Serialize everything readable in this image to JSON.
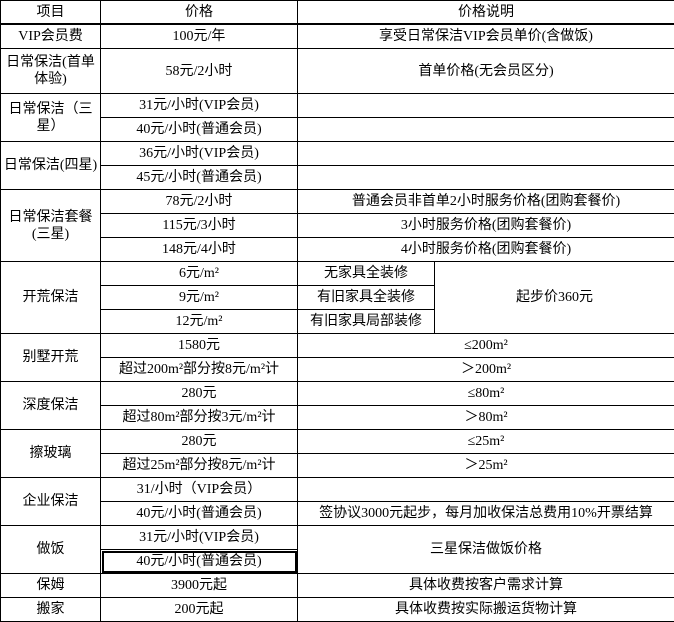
{
  "header": [
    "项目",
    "价格",
    "价格说明"
  ],
  "rows": [
    {
      "item": "VIP会员费",
      "prices": [
        "100元/年"
      ],
      "notes": [
        {
          "text": "享受日常保洁VIP会员单价(含做饭)",
          "rowspan": 1
        }
      ]
    },
    {
      "item": "日常保洁(首单体验)",
      "tall": true,
      "prices": [
        "58元/2小时"
      ],
      "notes": [
        {
          "text": "首单价格(无会员区分)",
          "rowspan": 1
        }
      ]
    },
    {
      "item": "日常保洁（三星）",
      "prices": [
        "31元/小时(VIP会员)",
        "40元/小时(普通会员)"
      ],
      "notes": [
        {
          "text": "",
          "rowspan": 1
        },
        {
          "text": "",
          "rowspan": 1
        }
      ]
    },
    {
      "item": "日常保洁(四星)",
      "prices": [
        "36元/小时(VIP会员)",
        "45元/小时(普通会员)"
      ],
      "notes": [
        {
          "text": "",
          "rowspan": 1
        },
        {
          "text": "",
          "rowspan": 1
        }
      ]
    },
    {
      "item": "日常保洁套餐(三星)",
      "prices": [
        "78元/2小时",
        "115元/3小时",
        "148元/4小时"
      ],
      "notes": [
        {
          "text": "普通会员非首单2小时服务价格(团购套餐价)",
          "rowspan": 1
        },
        {
          "text": "3小时服务价格(团购套餐价)",
          "rowspan": 1
        },
        {
          "text": "4小时服务价格(团购套餐价)",
          "rowspan": 1
        }
      ]
    },
    {
      "item": "开荒保洁",
      "prices": [
        "6元/m²",
        "9元/m²",
        "12元/m²"
      ],
      "subtypes": [
        "无家具全装修",
        "有旧家具全装修",
        "有旧家具局部装修"
      ],
      "notes": [
        {
          "text": "起步价360元",
          "rowspan": 3
        }
      ]
    },
    {
      "item": "别墅开荒",
      "prices": [
        "1580元",
        "超过200m²部分按8元/m²计"
      ],
      "notes": [
        {
          "text": "≤200m²",
          "rowspan": 1
        },
        {
          "text": "＞200m²",
          "rowspan": 1
        }
      ]
    },
    {
      "item": "深度保洁",
      "prices": [
        "280元",
        "超过80m²部分按3元/m²计"
      ],
      "notes": [
        {
          "text": "≤80m²",
          "rowspan": 1
        },
        {
          "text": "＞80m²",
          "rowspan": 1
        }
      ]
    },
    {
      "item": "擦玻璃",
      "prices": [
        "280元",
        "超过25m²部分按8元/m²计"
      ],
      "notes": [
        {
          "text": "≤25m²",
          "rowspan": 1
        },
        {
          "text": "＞25m²",
          "rowspan": 1
        }
      ]
    },
    {
      "item": "企业保洁",
      "prices": [
        "31/小时（VIP会员）",
        "40元/小时(普通会员)"
      ],
      "notes": [
        {
          "text": "",
          "rowspan": 1
        },
        {
          "text": "签协议3000元起步，每月加收保洁总费用10%开票结算",
          "rowspan": 1
        }
      ]
    },
    {
      "item": "做饭",
      "prices": [
        "31元/小时(VIP会员)",
        "40元/小时(普通会员)"
      ],
      "selected_price": 1,
      "notes": [
        {
          "text": "三星保洁做饭价格",
          "rowspan": 2
        }
      ]
    },
    {
      "item": "保姆",
      "prices": [
        "3900元起"
      ],
      "notes": [
        {
          "text": "具体收费按客户需求计算",
          "rowspan": 1
        }
      ]
    },
    {
      "item": "搬家",
      "prices": [
        "200元起"
      ],
      "notes": [
        {
          "text": "具体收费按实际搬运货物计算",
          "rowspan": 1
        }
      ]
    }
  ]
}
